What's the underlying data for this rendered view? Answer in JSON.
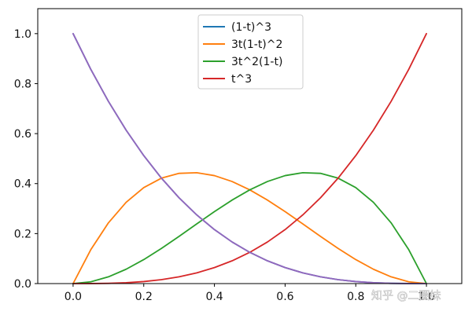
{
  "chart_data": {
    "type": "line",
    "title": "",
    "xlabel": "",
    "ylabel": "",
    "xlim": [
      -0.1,
      1.1
    ],
    "ylim": [
      0.0,
      1.1
    ],
    "x_ticks": [
      0.0,
      0.2,
      0.4,
      0.6,
      0.8,
      1.0
    ],
    "x_tick_labels": [
      "0.0",
      "0.2",
      "0.4",
      "0.6",
      "0.8",
      "1.0"
    ],
    "y_ticks": [
      0.0,
      0.2,
      0.4,
      0.6,
      0.8,
      1.0
    ],
    "y_tick_labels": [
      "0.0",
      "0.2",
      "0.4",
      "0.6",
      "0.8",
      "1.0"
    ],
    "grid": false,
    "legend_position": "top-center",
    "x": [
      0.0,
      0.05,
      0.1,
      0.15,
      0.2,
      0.25,
      0.3,
      0.35,
      0.4,
      0.45,
      0.5,
      0.55,
      0.6,
      0.65,
      0.7,
      0.75,
      0.8,
      0.85,
      0.9,
      0.95,
      1.0
    ],
    "series": [
      {
        "name": "(1-t)^3",
        "color": "#1f77b4",
        "values": [
          1.0,
          0.857375,
          0.729,
          0.614125,
          0.512,
          0.421875,
          0.343,
          0.274625,
          0.216,
          0.166375,
          0.125,
          0.091125,
          0.064,
          0.042875,
          0.027,
          0.015625,
          0.008,
          0.003375,
          0.001,
          0.000125,
          0.0
        ]
      },
      {
        "name": "3t(1-t)^2",
        "color": "#ff7f0e",
        "values": [
          0.0,
          0.135375,
          0.243,
          0.325125,
          0.384,
          0.421875,
          0.441,
          0.443625,
          0.432,
          0.408375,
          0.375,
          0.334125,
          0.288,
          0.238875,
          0.189,
          0.140625,
          0.096,
          0.057375,
          0.027,
          0.007125,
          0.0
        ]
      },
      {
        "name": "3t^2(1-t)",
        "color": "#2ca02c",
        "values": [
          0.0,
          0.007125,
          0.027,
          0.057375,
          0.096,
          0.140625,
          0.189,
          0.238875,
          0.288,
          0.334125,
          0.375,
          0.408375,
          0.432,
          0.443625,
          0.441,
          0.421875,
          0.384,
          0.325125,
          0.243,
          0.135375,
          0.0
        ]
      },
      {
        "name": "t^3",
        "color": "#d62728",
        "values": [
          0.0,
          0.000125,
          0.001,
          0.003375,
          0.008,
          0.015625,
          0.027,
          0.042875,
          0.064,
          0.091125,
          0.125,
          0.166375,
          0.216,
          0.274625,
          0.343,
          0.421875,
          0.512,
          0.614125,
          0.729,
          0.857375,
          1.0
        ]
      },
      {
        "color": "#9467bd",
        "values": [
          1.0,
          0.857375,
          0.729,
          0.614125,
          0.512,
          0.421875,
          0.343,
          0.274625,
          0.216,
          0.166375,
          0.125,
          0.091125,
          0.064,
          0.042875,
          0.027,
          0.015625,
          0.008,
          0.003375,
          0.001,
          0.000125,
          0.0
        ]
      }
    ]
  },
  "watermark": {
    "text": "知乎 @二圈妹"
  }
}
